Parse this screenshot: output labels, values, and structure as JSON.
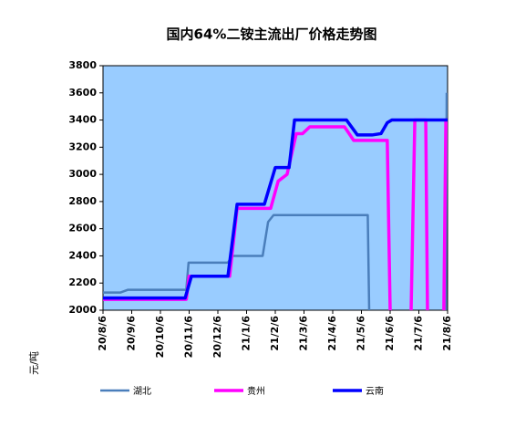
{
  "chart_data": {
    "type": "line",
    "title": "国内64%二铵主流出厂价格走势图",
    "y_label": "元/吨",
    "xlim": [
      0,
      12
    ],
    "xticks": [
      {
        "value": 0,
        "label": "20/8/6"
      },
      {
        "value": 1,
        "label": "20/9/6"
      },
      {
        "value": 2,
        "label": "20/10/6"
      },
      {
        "value": 3,
        "label": "20/11/6"
      },
      {
        "value": 4,
        "label": "20/12/6"
      },
      {
        "value": 5,
        "label": "21/1/6"
      },
      {
        "value": 6,
        "label": "21/2/6"
      },
      {
        "value": 7,
        "label": "21/3/6"
      },
      {
        "value": 8,
        "label": "21/4/6"
      },
      {
        "value": 9,
        "label": "21/5/6"
      },
      {
        "value": 10,
        "label": "21/6/6"
      },
      {
        "value": 11,
        "label": "21/7/6"
      },
      {
        "value": 12,
        "label": "21/8/6"
      }
    ],
    "ylim": [
      2000,
      3800
    ],
    "yticks": [
      2000,
      2200,
      2400,
      2600,
      2800,
      3000,
      3200,
      3400,
      3600,
      3800
    ],
    "plot_background": "#99ccff",
    "series": [
      {
        "name": "湖北",
        "color": "#4a7ebb",
        "width": 2.5,
        "x": [
          0,
          0.6,
          0.86,
          2.9,
          2.98,
          4.35,
          4.5,
          5.56,
          5.75,
          5.94,
          9.22,
          9.27,
          null,
          11.94,
          11.97
        ],
        "values": [
          2130,
          2130,
          2150,
          2150,
          2350,
          2350,
          2400,
          2400,
          2650,
          2700,
          2700,
          2000,
          null,
          2000,
          3600
        ]
      },
      {
        "name": "贵州",
        "color": "#ff00ff",
        "width": 3.5,
        "x": [
          0,
          2.9,
          3.0,
          4.41,
          4.67,
          5.84,
          6.1,
          6.41,
          6.73,
          6.95,
          7.2,
          8.41,
          8.73,
          9.9,
          10.0,
          null,
          10.73,
          10.86,
          11.24,
          11.3,
          null,
          11.87,
          11.94,
          12
        ],
        "values": [
          2080,
          2080,
          2250,
          2250,
          2750,
          2750,
          2950,
          3000,
          3300,
          3300,
          3350,
          3350,
          3250,
          3250,
          2000,
          null,
          2000,
          3400,
          3400,
          2000,
          null,
          2000,
          3400,
          3400
        ]
      },
      {
        "name": "云南",
        "color": "#0000ff",
        "width": 3.5,
        "x": [
          0,
          2.86,
          3.08,
          4.35,
          4.67,
          5.62,
          6.0,
          6.48,
          6.67,
          8.48,
          8.86,
          9.37,
          9.68,
          9.9,
          10.06,
          12
        ],
        "values": [
          2090,
          2090,
          2250,
          2250,
          2780,
          2780,
          3050,
          3050,
          3400,
          3400,
          3290,
          3290,
          3300,
          3380,
          3400,
          3400
        ]
      }
    ]
  }
}
